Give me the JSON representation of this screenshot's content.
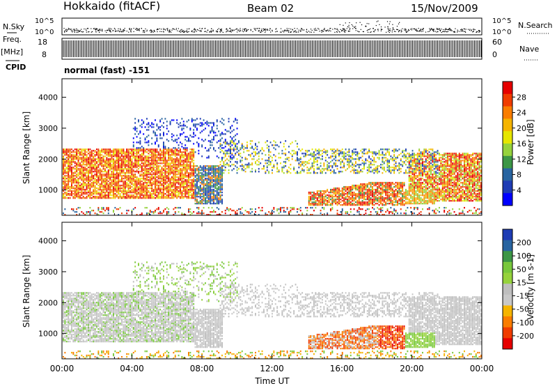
{
  "header": {
    "station": "Hokkaido (fitACF)",
    "beam": "Beam 02",
    "date": "15/Nov/2009"
  },
  "side_labels": {
    "nsky": "N.Sky",
    "freq": "Freq.",
    "freq_unit": "[MHz]",
    "cpid": "CPID",
    "nsearch": "N.Search",
    "nave": "Nave"
  },
  "cpid_text": "normal (fast) -151",
  "chart_data": [
    {
      "type": "line",
      "name": "noise",
      "y_tick_labels": [
        "10^5",
        "10^0"
      ],
      "right_tick_labels": [
        "10^5",
        "10^0"
      ],
      "note": "noise sky (dots) and noise search (dotted) traces"
    },
    {
      "type": "line",
      "name": "frequency-nave",
      "left_ticks": [
        "18",
        "8"
      ],
      "right_ticks": [
        "60",
        "0"
      ]
    },
    {
      "type": "heatmap",
      "name": "power",
      "ylabel": "Slant Range [km]",
      "yticks": [
        1000,
        2000,
        3000,
        4000
      ],
      "ylim": [
        180,
        4600
      ],
      "colorbar_label": "Power [dB]",
      "colorbar_ticks": [
        "28",
        "24",
        "20",
        "16",
        "12",
        "8",
        "4"
      ],
      "colorbar_colors": [
        "#e60000",
        "#f03c00",
        "#fa7d00",
        "#f5b400",
        "#e6e600",
        "#96d23c",
        "#3c9646",
        "#2864a0",
        "#1e3cb4",
        "#0000ff"
      ]
    },
    {
      "type": "heatmap",
      "name": "velocity",
      "ylabel": "Slant Range [km]",
      "yticks": [
        1000,
        2000,
        3000,
        4000
      ],
      "ylim": [
        180,
        4600
      ],
      "colorbar_label": "Velocity [m s-1]",
      "colorbar_ticks": [
        "200",
        "100",
        "50",
        "15",
        "-15",
        "-50",
        "-100",
        "-200"
      ],
      "colorbar_colors": [
        "#1e3cb4",
        "#2864a0",
        "#3c9646",
        "#78c83c",
        "#96d23c",
        "#bebebe",
        "#c8c8c8",
        "#f5b400",
        "#fa7d00",
        "#f03c00",
        "#e60000"
      ]
    }
  ],
  "x_axis": {
    "ticks": [
      "00:00",
      "04:00",
      "08:00",
      "12:00",
      "16:00",
      "20:00",
      "00:00"
    ],
    "label": "Time UT"
  }
}
